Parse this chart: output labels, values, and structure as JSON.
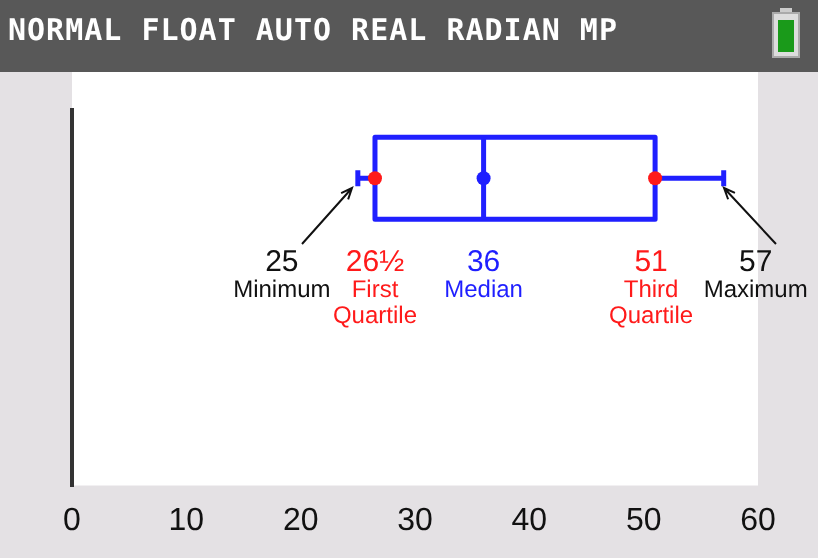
{
  "chart_data": {
    "type": "box",
    "title": "NORMAL FLOAT AUTO REAL RADIAN MP",
    "orientation": "horizontal",
    "categories": [
      null
    ],
    "series": [
      {
        "color": "#1f1fff",
        "boxes": [
          {
            "low": 25,
            "q1": 26.5,
            "median": 36,
            "q3": 51,
            "high": 57
          }
        ]
      },
      {
        "type": "scatter",
        "marker": "circle",
        "x": [
          null,
          null,
          null
        ],
        "values": [
          26.5,
          36,
          51
        ],
        "colors": [
          "#ff1a1a",
          "#1f1fff",
          "#ff1a1a"
        ]
      }
    ],
    "xlim": [
      0,
      60
    ],
    "xticks": [
      0,
      10,
      20,
      30,
      40,
      50,
      60
    ],
    "grid": false,
    "legend": false,
    "tick_labels": "x",
    "annotations": [
      "25",
      "Minimum",
      "26½",
      "First Quartile",
      "36",
      "Median",
      "51",
      "Third Quartile",
      "57",
      "Maximum"
    ]
  }
}
